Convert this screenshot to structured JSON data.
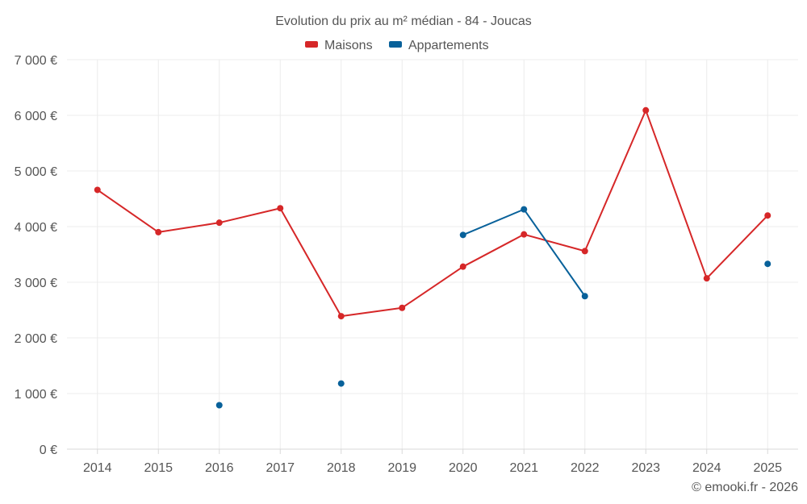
{
  "chart_data": {
    "type": "line",
    "title": "Evolution du prix au m² médian - 84 - Joucas",
    "categories": [
      "2014",
      "2015",
      "2016",
      "2017",
      "2018",
      "2019",
      "2020",
      "2021",
      "2022",
      "2023",
      "2024",
      "2025"
    ],
    "series": [
      {
        "name": "Maisons",
        "color": "#d62728",
        "values": [
          4660,
          3900,
          4070,
          4330,
          2390,
          2540,
          3280,
          3860,
          3560,
          6090,
          3070,
          4200
        ]
      },
      {
        "name": "Appartements",
        "color": "#08619a",
        "values": [
          null,
          null,
          790,
          null,
          1180,
          null,
          3850,
          4310,
          2750,
          null,
          null,
          3330
        ]
      }
    ],
    "ylim": [
      0,
      7000
    ],
    "yticks": [
      0,
      1000,
      2000,
      3000,
      4000,
      5000,
      6000,
      7000
    ],
    "ytick_labels": [
      "0 €",
      "1 000 €",
      "2 000 €",
      "3 000 €",
      "4 000 €",
      "5 000 €",
      "6 000 €",
      "7 000 €"
    ],
    "xlabel": "",
    "ylabel": "",
    "grid": true,
    "legend": "top-center"
  },
  "credit": "© emooki.fr - 2026"
}
